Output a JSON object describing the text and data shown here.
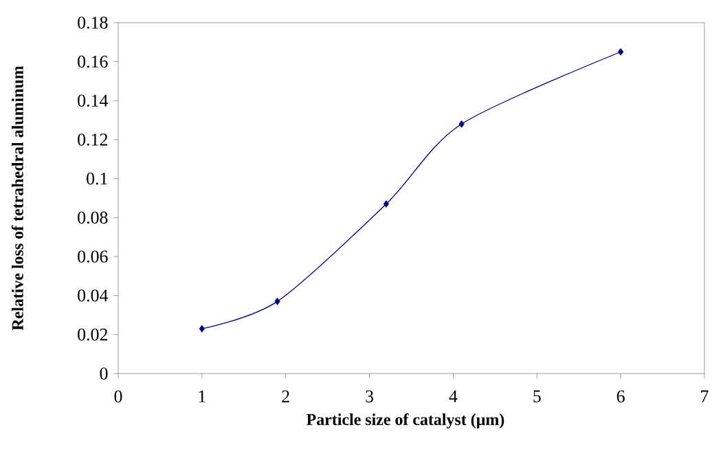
{
  "chart_data": {
    "type": "line",
    "xlabel": "Particle size of catalyst (µm)",
    "ylabel": "Relative loss of tetrahedral aluminum",
    "x": [
      1,
      1.9,
      3.2,
      4.1,
      6
    ],
    "series": [
      {
        "color": "#000080",
        "values": [
          0.023,
          0.037,
          0.087,
          0.128,
          0.165
        ]
      }
    ],
    "xlim": [
      0,
      7
    ],
    "xticks": [
      0,
      1,
      2,
      3,
      4,
      5,
      6,
      7
    ],
    "ylim": [
      0,
      0.18
    ],
    "yticks": [
      0,
      0.02,
      0.04,
      0.06,
      0.08,
      0.1,
      0.12,
      0.14,
      0.16,
      0.18
    ],
    "grid": false,
    "marker": "diamond",
    "line_style": "solid"
  }
}
